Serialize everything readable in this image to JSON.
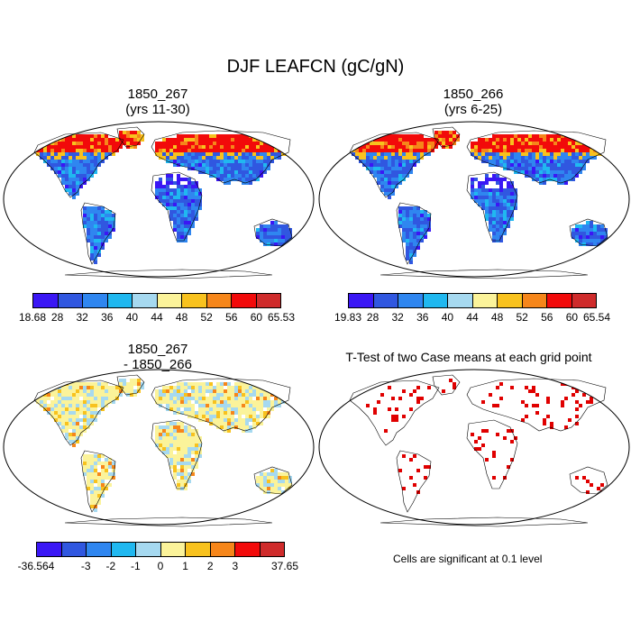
{
  "title": "DJF LEAFCN (gC/gN)",
  "panels": [
    {
      "title_line1": "1850_267",
      "title_line2": "(yrs 11-30)"
    },
    {
      "title_line1": "1850_266",
      "title_line2": "(yrs 6-25)"
    },
    {
      "title_line1": "1850_267",
      "title_line2": "- 1850_266"
    },
    {
      "title_line1": "T-Test of two Case means at each grid point",
      "title_line2": ""
    }
  ],
  "colorbars": [
    {
      "colors": [
        "#3a17f5",
        "#3057e0",
        "#2f86f0",
        "#20b8f0",
        "#a6d9f0",
        "#fbf39a",
        "#f8c21e",
        "#f6861a",
        "#f20a0a",
        "#cf2b2b"
      ],
      "labels": [
        "18.68",
        "28",
        "32",
        "36",
        "40",
        "44",
        "48",
        "52",
        "56",
        "60",
        "65.53"
      ]
    },
    {
      "colors": [
        "#3a17f5",
        "#3057e0",
        "#2f86f0",
        "#20b8f0",
        "#a6d9f0",
        "#fbf39a",
        "#f8c21e",
        "#f6861a",
        "#f20a0a",
        "#cf2b2b"
      ],
      "labels": [
        "19.83",
        "28",
        "32",
        "36",
        "40",
        "44",
        "48",
        "52",
        "56",
        "60",
        "65.54"
      ]
    },
    {
      "colors": [
        "#3a17f5",
        "#3057e0",
        "#2f86f0",
        "#20b8f0",
        "#a6d9f0",
        "#fbf39a",
        "#f8c21e",
        "#f6861a",
        "#f20a0a",
        "#cf2b2b"
      ],
      "labels": [
        "-36.564",
        "-3",
        "-2",
        "-1",
        "0",
        "1",
        "2",
        "3",
        "37.65"
      ],
      "label_positions": [
        0,
        2,
        3,
        4,
        5,
        6,
        7,
        8,
        10
      ]
    }
  ],
  "note": "Cells are significant at 0.1 level"
}
